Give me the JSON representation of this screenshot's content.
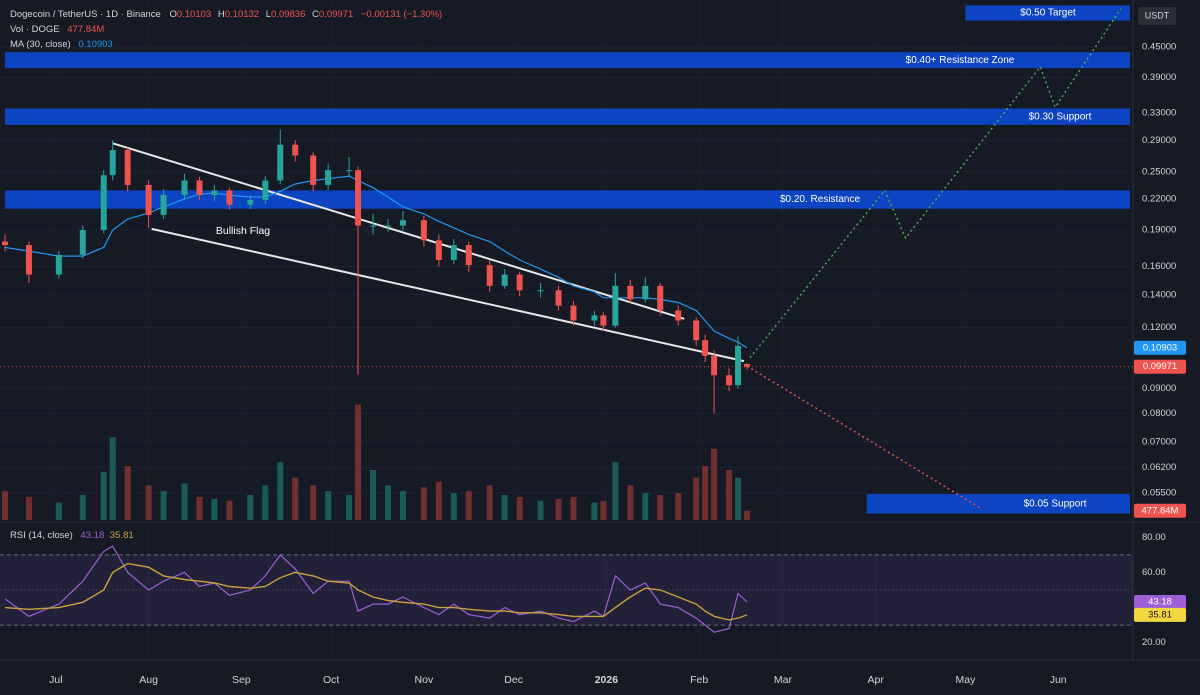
{
  "chart_data": {
    "type": "candlestick",
    "title": "Dogecoin / TetherUS · 1D · Binance",
    "ohlc_keys": [
      "O",
      "H",
      "L",
      "C"
    ],
    "change_label": "−0.00131 (−1.30%)",
    "currency": "USDT",
    "log_scale": true,
    "grid": true,
    "xlim": [
      -17,
      359
    ],
    "xticks": [
      {
        "value": 0,
        "label": "Jul"
      },
      {
        "value": 31,
        "label": "Aug"
      },
      {
        "value": 62,
        "label": "Sep"
      },
      {
        "value": 92,
        "label": "Oct"
      },
      {
        "value": 123,
        "label": "Nov"
      },
      {
        "value": 153,
        "label": "Dec"
      },
      {
        "value": 184,
        "label": "2026"
      },
      {
        "value": 215,
        "label": "Feb"
      },
      {
        "value": 243,
        "label": "Mar"
      },
      {
        "value": 274,
        "label": "Apr"
      },
      {
        "value": 304,
        "label": "May"
      },
      {
        "value": 335,
        "label": "Jun"
      }
    ],
    "ylim": [
      0.0484,
      0.549
    ],
    "yticks": [
      {
        "value": 0.45,
        "label": "0.45000"
      },
      {
        "value": 0.39,
        "label": "0.39000"
      },
      {
        "value": 0.33,
        "label": "0.33000"
      },
      {
        "value": 0.29,
        "label": "0.29000"
      },
      {
        "value": 0.25,
        "label": "0.25000"
      },
      {
        "value": 0.22,
        "label": "0.22000"
      },
      {
        "value": 0.19,
        "label": "0.19000"
      },
      {
        "value": 0.16,
        "label": "0.16000"
      },
      {
        "value": 0.14,
        "label": "0.14000"
      },
      {
        "value": 0.12,
        "label": "0.12000"
      },
      {
        "value": 0.09,
        "label": "0.09000"
      },
      {
        "value": 0.08,
        "label": "0.08000"
      },
      {
        "value": 0.07,
        "label": "0.07000"
      },
      {
        "value": 0.062,
        "label": "0.06200"
      },
      {
        "value": 0.055,
        "label": "0.05500"
      }
    ],
    "candles": {
      "up_color": "#26a69a",
      "down_color": "#ef5350",
      "x": [
        -17,
        -9,
        1,
        9,
        16,
        19,
        24,
        31,
        36,
        43,
        48,
        53,
        58,
        65,
        70,
        75,
        80,
        86,
        91,
        98,
        101,
        106,
        111,
        116,
        123,
        128,
        133,
        138,
        145,
        150,
        155,
        162,
        168,
        173,
        180,
        183,
        187,
        192,
        197,
        202,
        208,
        214,
        217,
        220,
        225,
        228,
        231
      ],
      "open": [
        0.18,
        0.177,
        0.154,
        0.169,
        0.19,
        0.246,
        0.277,
        0.235,
        0.204,
        0.224,
        0.24,
        0.224,
        0.229,
        0.214,
        0.219,
        0.24,
        0.284,
        0.27,
        0.235,
        0.252,
        0.252,
        0.194,
        0.194,
        0.194,
        0.199,
        0.181,
        0.165,
        0.177,
        0.161,
        0.146,
        0.154,
        0.143,
        0.143,
        0.133,
        0.124,
        0.127,
        0.121,
        0.146,
        0.137,
        0.146,
        0.13,
        0.124,
        0.113,
        0.105,
        0.0958,
        0.0914,
        0.10103
      ],
      "high": [
        0.186,
        0.18,
        0.172,
        0.194,
        0.252,
        0.29,
        0.28,
        0.24,
        0.23,
        0.248,
        0.244,
        0.235,
        0.232,
        0.224,
        0.245,
        0.305,
        0.29,
        0.274,
        0.26,
        0.268,
        0.256,
        0.205,
        0.2,
        0.208,
        0.203,
        0.186,
        0.182,
        0.18,
        0.165,
        0.158,
        0.156,
        0.148,
        0.146,
        0.136,
        0.13,
        0.129,
        0.155,
        0.15,
        0.152,
        0.148,
        0.133,
        0.126,
        0.116,
        0.108,
        0.099,
        0.115,
        0.10132
      ],
      "low": [
        0.172,
        0.148,
        0.151,
        0.166,
        0.187,
        0.24,
        0.228,
        0.192,
        0.2,
        0.219,
        0.219,
        0.218,
        0.209,
        0.21,
        0.215,
        0.236,
        0.262,
        0.228,
        0.23,
        0.245,
        0.096,
        0.186,
        0.188,
        0.19,
        0.176,
        0.16,
        0.162,
        0.156,
        0.142,
        0.144,
        0.139,
        0.138,
        0.13,
        0.121,
        0.121,
        0.118,
        0.12,
        0.134,
        0.135,
        0.127,
        0.121,
        0.11,
        0.102,
        0.08,
        0.089,
        0.09,
        0.09836
      ],
      "close": [
        0.177,
        0.154,
        0.169,
        0.19,
        0.246,
        0.277,
        0.235,
        0.204,
        0.224,
        0.24,
        0.224,
        0.229,
        0.214,
        0.219,
        0.24,
        0.284,
        0.27,
        0.235,
        0.252,
        0.252,
        0.194,
        0.194,
        0.194,
        0.199,
        0.181,
        0.165,
        0.177,
        0.161,
        0.146,
        0.154,
        0.143,
        0.143,
        0.133,
        0.124,
        0.127,
        0.121,
        0.146,
        0.137,
        0.146,
        0.13,
        0.124,
        0.113,
        0.105,
        0.0958,
        0.0914,
        0.11,
        0.09971
      ]
    },
    "ma": {
      "name": "MA (30, close)",
      "color": "#2196f3",
      "values": [
        0.175,
        0.172,
        0.168,
        0.168,
        0.175,
        0.19,
        0.2,
        0.206,
        0.212,
        0.22,
        0.225,
        0.226,
        0.224,
        0.222,
        0.222,
        0.228,
        0.236,
        0.24,
        0.242,
        0.245,
        0.24,
        0.232,
        0.222,
        0.212,
        0.205,
        0.198,
        0.192,
        0.186,
        0.18,
        0.172,
        0.165,
        0.158,
        0.152,
        0.146,
        0.142,
        0.138,
        0.138,
        0.138,
        0.138,
        0.137,
        0.135,
        0.13,
        0.124,
        0.118,
        0.114,
        0.112,
        0.10903
      ]
    },
    "volume": {
      "name": "Vol · DOGE",
      "ylim": [
        0,
        6500
      ],
      "last_label": "477.84M",
      "values": [
        1500,
        1200,
        900,
        1300,
        2500,
        4300,
        2800,
        1800,
        1500,
        1900,
        1200,
        1100,
        1000,
        1300,
        1800,
        3000,
        2200,
        1800,
        1500,
        1300,
        6000,
        2600,
        1800,
        1500,
        1700,
        2000,
        1400,
        1500,
        1800,
        1300,
        1200,
        1000,
        1100,
        1200,
        900,
        1000,
        3000,
        1800,
        1400,
        1300,
        1400,
        2200,
        2800,
        3700,
        2600,
        2200,
        477.84
      ]
    },
    "zones": [
      {
        "label": "$0.50 Target",
        "x_from": 304,
        "low": 0.51,
        "high": 0.548
      },
      {
        "label": "$0.40+ Resistance Zone",
        "x_from": -17,
        "low": 0.4076,
        "high": 0.4395
      },
      {
        "label": "$0.30 Support",
        "x_from": -17,
        "low": 0.312,
        "high": 0.337
      },
      {
        "label": "$0.20. Resistance",
        "x_from": -17,
        "low": 0.21,
        "high": 0.229
      },
      {
        "label": "$0.05 Support",
        "x_from": 271,
        "low": 0.0499,
        "high": 0.0547
      }
    ],
    "flag_label": "Bullish Flag",
    "trendlines": [
      {
        "x": [
          19,
          210
        ],
        "values": [
          0.286,
          0.125
        ]
      },
      {
        "x": [
          32,
          230
        ],
        "values": [
          0.191,
          0.1024
        ]
      }
    ],
    "projections": [
      {
        "color": "#4caf50",
        "x": [
          232,
          277,
          284,
          329,
          334,
          356
        ],
        "values": [
          0.104,
          0.229,
          0.183,
          0.41,
          0.339,
          0.54
        ]
      },
      {
        "color": "#ef5350",
        "x": [
          231,
          309
        ],
        "values": [
          0.1,
          0.0512
        ]
      }
    ],
    "rsi": {
      "name": "RSI (14, close)",
      "color": "#9c5fd6",
      "ma_color": "#c9a13c",
      "ylim": [
        13,
        87
      ],
      "yticks": [
        {
          "value": 80,
          "label": "80.00"
        },
        {
          "value": 60,
          "label": "60.00"
        },
        {
          "value": 20,
          "label": "20.00"
        }
      ],
      "band": [
        30,
        70
      ],
      "midline": 50,
      "values": [
        45,
        35,
        42,
        55,
        72,
        75,
        60,
        50,
        55,
        60,
        52,
        54,
        47,
        50,
        58,
        70,
        62,
        48,
        55,
        55,
        38,
        42,
        42,
        46,
        40,
        36,
        42,
        36,
        34,
        40,
        36,
        38,
        34,
        32,
        38,
        35,
        58,
        50,
        54,
        42,
        40,
        34,
        30,
        26,
        28,
        48,
        43.18
      ],
      "ma": [
        40,
        39,
        40,
        43,
        50,
        60,
        65,
        63,
        58,
        56,
        55,
        54,
        52,
        51,
        52,
        57,
        60,
        58,
        55,
        54,
        50,
        46,
        44,
        43,
        42,
        40,
        40,
        39,
        38,
        38,
        37,
        37,
        36,
        35,
        35,
        35,
        40,
        46,
        51,
        50,
        46,
        42,
        38,
        35,
        33,
        34,
        35.81
      ]
    }
  }
}
